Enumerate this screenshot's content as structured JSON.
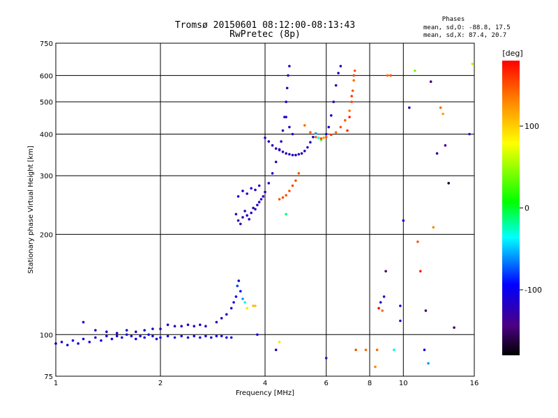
{
  "chart_data": {
    "type": "scatter",
    "title": "Tromsø 20150601 08:12:00-08:13:43",
    "subtitle": "RwPretec (8p)",
    "annotation": {
      "heading": "Phases",
      "line1": "mean, sd,O: -88.8, 17.5",
      "line2": "mean, sd,X:  87.4, 20.7"
    },
    "xlabel": "Frequency [MHz]",
    "ylabel": "Stationary phase Virtual Height [km]",
    "xscale": "log",
    "yscale": "log",
    "xlim": [
      1,
      16
    ],
    "ylim": [
      75,
      750
    ],
    "xticks": [
      1,
      2,
      4,
      6,
      8,
      10,
      16
    ],
    "yticks": [
      75,
      100,
      200,
      300,
      400,
      500,
      600,
      750
    ],
    "grid": true,
    "colorbar": {
      "label": "[deg]",
      "range": [
        -180,
        180
      ],
      "ticks": [
        100,
        0,
        -100
      ],
      "colormap": "rainbow-black-to-red"
    },
    "series": [
      {
        "points": [
          [
            1.0,
            94,
            -110
          ],
          [
            1.04,
            95,
            -105
          ],
          [
            1.08,
            93,
            -100
          ],
          [
            1.12,
            96,
            -95
          ],
          [
            1.16,
            94,
            -108
          ],
          [
            1.2,
            97,
            -102
          ],
          [
            1.25,
            95,
            -98
          ],
          [
            1.3,
            98,
            -112
          ],
          [
            1.35,
            96,
            -100
          ],
          [
            1.4,
            99,
            -104
          ],
          [
            1.45,
            97,
            -96
          ],
          [
            1.5,
            99,
            -110
          ],
          [
            1.55,
            98,
            -100
          ],
          [
            1.6,
            100,
            -106
          ],
          [
            1.65,
            99,
            -98
          ],
          [
            1.7,
            97,
            -102
          ],
          [
            1.75,
            99,
            -108
          ],
          [
            1.8,
            98,
            -100
          ],
          [
            1.85,
            100,
            -95
          ],
          [
            1.9,
            99,
            -110
          ],
          [
            1.95,
            97,
            -104
          ],
          [
            2.0,
            98,
            -100
          ],
          [
            2.1,
            99,
            -96
          ],
          [
            2.2,
            98,
            -108
          ],
          [
            2.3,
            99,
            -102
          ],
          [
            2.4,
            98,
            -100
          ],
          [
            2.5,
            99,
            -106
          ],
          [
            2.6,
            98,
            -98
          ],
          [
            2.7,
            99,
            -104
          ],
          [
            2.8,
            98,
            -100
          ],
          [
            2.9,
            99,
            -96
          ],
          [
            3.0,
            99,
            -110
          ],
          [
            3.1,
            98,
            -102
          ],
          [
            3.2,
            98,
            -100
          ]
        ]
      },
      {
        "points": [
          [
            1.2,
            109,
            -115
          ],
          [
            1.3,
            103,
            -120
          ],
          [
            1.4,
            102,
            -118
          ],
          [
            1.5,
            101,
            -116
          ],
          [
            1.6,
            103,
            -122
          ],
          [
            1.7,
            102,
            -115
          ],
          [
            1.8,
            103,
            -118
          ],
          [
            1.9,
            104,
            -120
          ],
          [
            2.0,
            104,
            -116
          ],
          [
            2.1,
            107,
            -118
          ],
          [
            2.2,
            106,
            -122
          ],
          [
            2.3,
            106,
            -115
          ],
          [
            2.4,
            107,
            -118
          ],
          [
            2.5,
            106,
            -120
          ],
          [
            2.6,
            107,
            -116
          ],
          [
            2.7,
            106,
            -118
          ],
          [
            2.9,
            109,
            -115
          ],
          [
            3.0,
            112,
            -118
          ],
          [
            3.1,
            115,
            -120
          ],
          [
            3.2,
            120,
            -116
          ],
          [
            3.25,
            125,
            -110
          ],
          [
            3.3,
            130,
            -100
          ],
          [
            3.33,
            140,
            -80
          ],
          [
            3.36,
            145,
            -120
          ],
          [
            3.4,
            135,
            -95
          ],
          [
            3.45,
            128,
            -60
          ],
          [
            3.5,
            125,
            -30
          ],
          [
            3.55,
            120,
            90
          ],
          [
            3.7,
            122,
            110
          ]
        ]
      },
      {
        "points": [
          [
            3.3,
            230,
            -125
          ],
          [
            3.35,
            220,
            -122
          ],
          [
            3.4,
            215,
            -120
          ],
          [
            3.45,
            225,
            -118
          ],
          [
            3.5,
            235,
            -125
          ],
          [
            3.55,
            228,
            -120
          ],
          [
            3.6,
            222,
            -122
          ],
          [
            3.65,
            232,
            -118
          ],
          [
            3.7,
            240,
            -125
          ],
          [
            3.75,
            238,
            -120
          ],
          [
            3.8,
            245,
            -118
          ],
          [
            3.85,
            250,
            -122
          ],
          [
            3.9,
            255,
            -120
          ],
          [
            3.95,
            260,
            -118
          ],
          [
            4.0,
            268,
            -125
          ],
          [
            4.1,
            285,
            -120
          ],
          [
            4.2,
            305,
            -118
          ],
          [
            4.3,
            330,
            -122
          ],
          [
            4.4,
            360,
            -120
          ],
          [
            4.45,
            380,
            -118
          ],
          [
            4.5,
            410,
            -122
          ],
          [
            4.55,
            450,
            -120
          ],
          [
            4.6,
            500,
            -118
          ],
          [
            4.63,
            550,
            -122
          ],
          [
            4.66,
            600,
            -120
          ],
          [
            4.7,
            640,
            -118
          ],
          [
            3.35,
            260,
            -110
          ],
          [
            3.45,
            270,
            -112
          ],
          [
            3.55,
            265,
            -108
          ],
          [
            3.65,
            275,
            -110
          ],
          [
            3.75,
            272,
            -112
          ],
          [
            3.85,
            280,
            -108
          ]
        ]
      },
      {
        "points": [
          [
            4.0,
            390,
            -120
          ],
          [
            4.1,
            380,
            -118
          ],
          [
            4.2,
            370,
            -122
          ],
          [
            4.3,
            362,
            -120
          ],
          [
            4.4,
            358,
            -118
          ],
          [
            4.5,
            354,
            -122
          ],
          [
            4.6,
            350,
            -120
          ],
          [
            4.7,
            348,
            -118
          ],
          [
            4.8,
            346,
            -122
          ],
          [
            4.9,
            346,
            -120
          ],
          [
            5.0,
            348,
            -118
          ],
          [
            5.1,
            350,
            -122
          ],
          [
            5.2,
            356,
            -120
          ],
          [
            5.3,
            365,
            -118
          ],
          [
            5.4,
            378,
            -122
          ],
          [
            5.5,
            392,
            -120
          ],
          [
            5.6,
            402,
            -60
          ],
          [
            5.7,
            390,
            -30
          ],
          [
            5.8,
            385,
            20
          ],
          [
            5.9,
            390,
            120
          ],
          [
            6.0,
            400,
            -100
          ],
          [
            6.1,
            420,
            -110
          ],
          [
            6.2,
            455,
            -115
          ],
          [
            6.3,
            500,
            -120
          ],
          [
            6.4,
            560,
            -118
          ],
          [
            6.5,
            610,
            -122
          ],
          [
            6.6,
            640,
            -120
          ],
          [
            4.6,
            450,
            -110
          ],
          [
            4.7,
            420,
            -112
          ],
          [
            4.8,
            400,
            -108
          ]
        ]
      },
      {
        "points": [
          [
            4.4,
            255,
            150
          ],
          [
            4.5,
            258,
            155
          ],
          [
            4.6,
            262,
            150
          ],
          [
            4.7,
            270,
            148
          ],
          [
            4.8,
            280,
            155
          ],
          [
            4.9,
            290,
            150
          ],
          [
            5.0,
            305,
            148
          ],
          [
            5.2,
            425,
            140
          ],
          [
            5.4,
            405,
            145
          ],
          [
            5.6,
            392,
            140
          ],
          [
            5.8,
            388,
            150
          ],
          [
            6.0,
            392,
            145
          ],
          [
            6.2,
            398,
            160
          ],
          [
            6.4,
            405,
            140
          ],
          [
            6.6,
            420,
            150
          ],
          [
            6.8,
            440,
            145
          ],
          [
            7.0,
            470,
            140
          ],
          [
            7.1,
            500,
            150
          ],
          [
            7.15,
            540,
            145
          ],
          [
            7.2,
            580,
            140
          ],
          [
            7.25,
            620,
            150
          ],
          [
            6.9,
            410,
            165
          ],
          [
            7.0,
            450,
            170
          ],
          [
            7.1,
            520,
            160
          ],
          [
            7.2,
            600,
            155
          ]
        ]
      },
      {
        "points": [
          [
            3.75,
            122,
            105
          ],
          [
            3.8,
            100,
            -110
          ],
          [
            4.3,
            90,
            -120
          ],
          [
            4.4,
            95,
            90
          ],
          [
            4.6,
            230,
            -10
          ],
          [
            6.0,
            85,
            -125
          ],
          [
            7.3,
            90,
            150
          ],
          [
            7.8,
            90,
            140
          ],
          [
            8.3,
            80,
            130
          ],
          [
            8.4,
            90,
            140
          ],
          [
            8.5,
            120,
            180
          ],
          [
            8.6,
            125,
            -110
          ],
          [
            8.7,
            118,
            140
          ],
          [
            8.8,
            130,
            -120
          ],
          [
            8.9,
            155,
            -150
          ],
          [
            9.0,
            600,
            140
          ],
          [
            9.2,
            600,
            150
          ],
          [
            9.4,
            90,
            -30
          ],
          [
            9.8,
            110,
            -120
          ],
          [
            10.0,
            220,
            -110
          ],
          [
            10.4,
            480,
            -110
          ],
          [
            10.8,
            620,
            40
          ],
          [
            11.0,
            190,
            150
          ],
          [
            11.2,
            155,
            170
          ],
          [
            11.5,
            90,
            -110
          ],
          [
            11.8,
            82,
            -60
          ],
          [
            12.0,
            575,
            -150
          ],
          [
            12.2,
            210,
            130
          ],
          [
            12.5,
            350,
            -130
          ],
          [
            12.8,
            480,
            140
          ],
          [
            13.0,
            460,
            120
          ],
          [
            13.2,
            370,
            -140
          ],
          [
            13.5,
            285,
            -170
          ],
          [
            15.5,
            400,
            -125
          ],
          [
            15.8,
            650,
            60
          ],
          [
            14.0,
            105,
            -150
          ],
          [
            11.6,
            118,
            -150
          ],
          [
            9.8,
            122,
            -110
          ]
        ]
      }
    ]
  }
}
